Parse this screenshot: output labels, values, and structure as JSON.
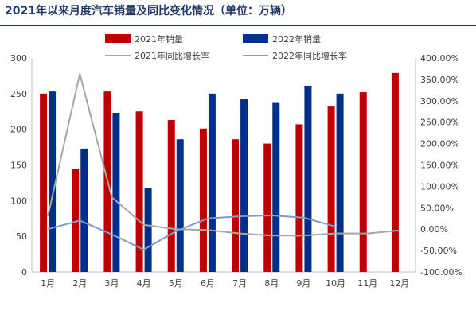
{
  "chart_data": {
    "type": "bar",
    "title": "2021年以来月度汽车销量及同比变化情况（单位：万辆）",
    "categories": [
      "1月",
      "2月",
      "3月",
      "4月",
      "5月",
      "6月",
      "7月",
      "8月",
      "9月",
      "10月",
      "11月",
      "12月"
    ],
    "series": [
      {
        "name": "2021年销量",
        "kind": "bar",
        "axis": "left",
        "color": "#c00000",
        "values": [
          250,
          145,
          253,
          225,
          213,
          201,
          186,
          180,
          207,
          233,
          252,
          279
        ]
      },
      {
        "name": "2022年销量",
        "kind": "bar",
        "axis": "left",
        "color": "#003087",
        "values": [
          253,
          173,
          223,
          118,
          186,
          250,
          242,
          238,
          261,
          250,
          null,
          null
        ]
      },
      {
        "name": "2021年同比增长率",
        "kind": "line",
        "axis": "right",
        "color": "#a6a6a6",
        "values": [
          30,
          363,
          75,
          10,
          0,
          -2,
          -10,
          -15,
          -15,
          -10,
          -10,
          -3
        ]
      },
      {
        "name": "2022年同比增长率",
        "kind": "line",
        "axis": "right",
        "color": "#7f9cc6",
        "values": [
          0,
          20,
          -12,
          -48,
          -5,
          25,
          30,
          32,
          27,
          6,
          null,
          null
        ]
      }
    ],
    "ylim_left": [
      0,
      300
    ],
    "yticks_left": [
      "0",
      "50",
      "100",
      "150",
      "200",
      "250",
      "300"
    ],
    "ylim_right": [
      -100,
      400
    ],
    "yticks_right": [
      "-100.00%",
      "-50.00%",
      "0.00%",
      "50.00%",
      "100.00%",
      "150.00%",
      "200.00%",
      "250.00%",
      "300.00%",
      "350.00%",
      "400.00%"
    ],
    "legend_position": "top",
    "grid": false
  }
}
